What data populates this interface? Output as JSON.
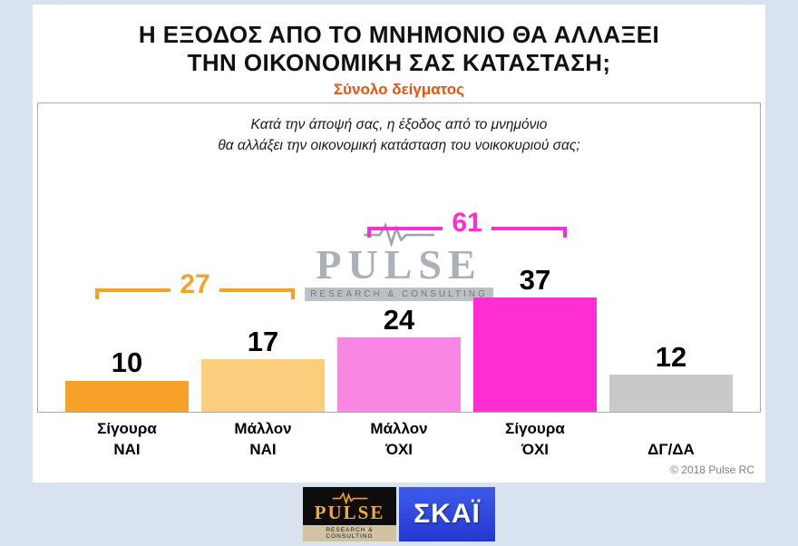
{
  "header": {
    "title": "Η ΕΞΟΔΟΣ ΑΠΟ ΤΟ ΜΝΗΜΟΝΙΟ ΘΑ ΑΛΛΑΞΕΙ\nΤΗΝ ΟΙΚΟΝΟΜΙΚΗ ΣΑΣ ΚΑΤΑΣΤΑΣΗ;",
    "subtitle": "Σύνολο δείγματος"
  },
  "question": "Κατά την άποψή σας, η έξοδος από το μνημόνιο\nθα αλλάξει την οικονομική κατάσταση του νοικοκυριού σας;",
  "chart_data": {
    "type": "bar",
    "title": "Η ΕΞΟΔΟΣ ΑΠΟ ΤΟ ΜΝΗΜΟΝΙΟ ΘΑ ΑΛΛΑΞΕΙ ΤΗΝ ΟΙΚΟΝΟΜΙΚΗ ΣΑΣ ΚΑΤΑΣΤΑΣΗ;",
    "subtitle": "Σύνολο δείγματος",
    "categories": [
      "Σίγουρα\nΝΑΙ",
      "Μάλλον\nΝΑΙ",
      "Μάλλον\nΌΧΙ",
      "Σίγουρα\nΌΧΙ",
      "ΔΓ/ΔΑ"
    ],
    "values": [
      10,
      17,
      24,
      37,
      12
    ],
    "bar_colors": [
      "#F6A229",
      "#FBCE7E",
      "#F787E2",
      "#FF2ED2",
      "#C9C9C9"
    ],
    "groups": [
      {
        "label": "27",
        "from": 0,
        "to": 1,
        "color": "#F6A229"
      },
      {
        "label": "61",
        "from": 2,
        "to": 3,
        "color": "#FF2ED2"
      }
    ],
    "ylim": [
      0,
      40
    ],
    "grid": false,
    "data_labels": true,
    "legend": "none"
  },
  "watermark": {
    "name": "PULSE",
    "tagline": "RESEARCH & CONSULTING"
  },
  "footer": {
    "copyright": "© 2018 Pulse RC"
  },
  "logos": {
    "pulse": {
      "name": "PULSE",
      "tagline": "RESEARCH & CONSULTING"
    },
    "skai": {
      "name": "ΣΚΑΪ"
    }
  }
}
